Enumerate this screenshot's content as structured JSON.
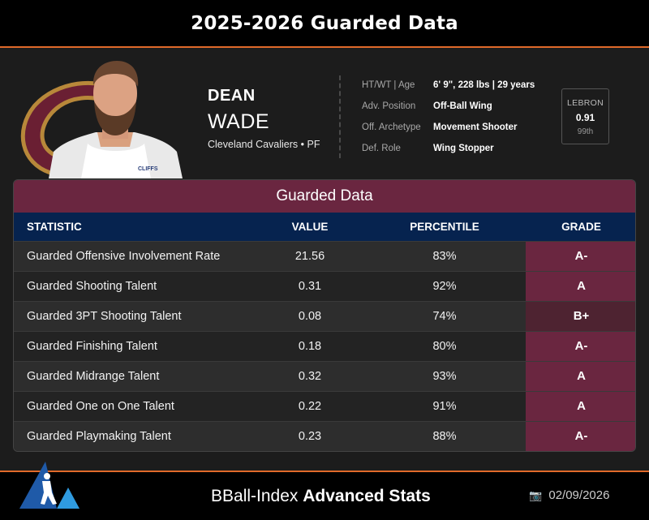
{
  "header_title": "2025-2026 Guarded Data",
  "player": {
    "first_name": "DEAN",
    "last_name": "WADE",
    "team_line": "Cleveland Cavaliers • PF",
    "jersey_text": "CLIFFS"
  },
  "info": [
    {
      "label": "HT/WT | Age",
      "value": "6' 9\", 228 lbs | 29 years"
    },
    {
      "label": "Adv. Position",
      "value": "Off-Ball Wing"
    },
    {
      "label": "Off. Archetype",
      "value": "Movement Shooter"
    },
    {
      "label": "Def. Role",
      "value": "Wing Stopper"
    }
  ],
  "lebron": {
    "label": "LEBRON",
    "value": "0.91",
    "percentile": "99th"
  },
  "table": {
    "title": "Guarded Data",
    "columns": {
      "statistic": "STATISTIC",
      "value": "VALUE",
      "percentile": "PERCENTILE",
      "grade": "GRADE"
    },
    "rows": [
      {
        "stat": "Guarded Offensive Involvement Rate",
        "value": "21.56",
        "percentile": "83%",
        "grade": "A-"
      },
      {
        "stat": "Guarded Shooting Talent",
        "value": "0.31",
        "percentile": "92%",
        "grade": "A"
      },
      {
        "stat": "Guarded 3PT Shooting Talent",
        "value": "0.08",
        "percentile": "74%",
        "grade": "B+"
      },
      {
        "stat": "Guarded Finishing Talent",
        "value": "0.18",
        "percentile": "80%",
        "grade": "A-"
      },
      {
        "stat": "Guarded Midrange Talent",
        "value": "0.32",
        "percentile": "93%",
        "grade": "A"
      },
      {
        "stat": "Guarded One on One Talent",
        "value": "0.22",
        "percentile": "91%",
        "grade": "A"
      },
      {
        "stat": "Guarded Playmaking Talent",
        "value": "0.23",
        "percentile": "88%",
        "grade": "A-"
      }
    ]
  },
  "footer": {
    "brand_light": "BBall-Index",
    "brand_bold": "Advanced Stats",
    "date": "02/09/2026",
    "date_icon": "camera-icon"
  },
  "colors": {
    "accent_orange": "#e06a2a",
    "wine": "#6a2640",
    "navy": "#06234f",
    "cavs_gold": "#b8883a"
  }
}
